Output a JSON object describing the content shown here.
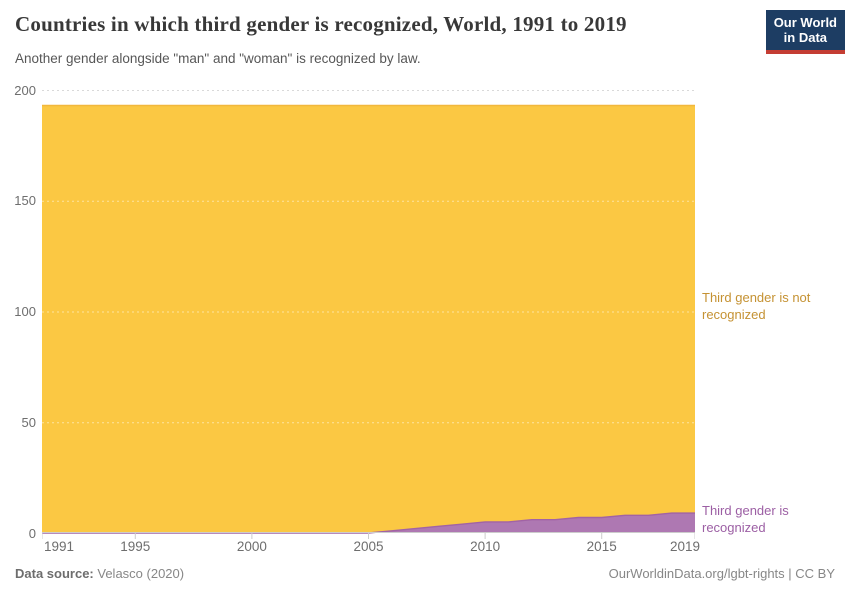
{
  "header": {
    "title": "Countries in which third gender is recognized, World, 1991 to 2019",
    "subtitle": "Another gender alongside \"man\" and \"woman\" is recognized by law."
  },
  "logo": {
    "line1": "Our World",
    "line2": "in Data",
    "bg_color": "#1d3d63",
    "bar_color": "#c43d33"
  },
  "chart_data": {
    "type": "area",
    "stacked": true,
    "title": "Countries in which third gender is recognized",
    "xlabel": "",
    "ylabel": "",
    "x": [
      1991,
      1992,
      1993,
      1994,
      1995,
      1996,
      1997,
      1998,
      1999,
      2000,
      2001,
      2002,
      2003,
      2004,
      2005,
      2006,
      2007,
      2008,
      2009,
      2010,
      2011,
      2012,
      2013,
      2014,
      2015,
      2016,
      2017,
      2018,
      2019
    ],
    "series": [
      {
        "name": "Third gender is recognized",
        "color": "#ae78b2",
        "line_color": "#a163a5",
        "values": [
          0,
          0,
          0,
          0,
          0,
          0,
          0,
          0,
          0,
          0,
          0,
          0,
          0,
          0,
          0,
          1,
          2,
          3,
          4,
          5,
          5,
          6,
          6,
          7,
          7,
          8,
          8,
          9,
          9
        ]
      },
      {
        "name": "Third gender is not recognized",
        "color": "#fbc843",
        "line_color": "#f2b73c",
        "values": [
          193,
          193,
          193,
          193,
          193,
          193,
          193,
          193,
          193,
          193,
          193,
          193,
          193,
          193,
          193,
          192,
          191,
          190,
          189,
          188,
          188,
          187,
          187,
          186,
          186,
          185,
          185,
          184,
          184
        ]
      }
    ],
    "ylim": [
      0,
      200
    ],
    "yticks": [
      0,
      50,
      100,
      150,
      200
    ],
    "xticks": [
      1991,
      1995,
      2000,
      2005,
      2010,
      2015,
      2019
    ],
    "grid": "dashed horizontal",
    "legend_position": "right-inline"
  },
  "annotations": {
    "not_recognized_label": "Third gender is not recognized",
    "recognized_label": "Third gender is recognized"
  },
  "footer": {
    "source_prefix": "Data source:",
    "source": "Velasco (2020)",
    "credit": "OurWorldinData.org/lgbt-rights | CC BY"
  }
}
